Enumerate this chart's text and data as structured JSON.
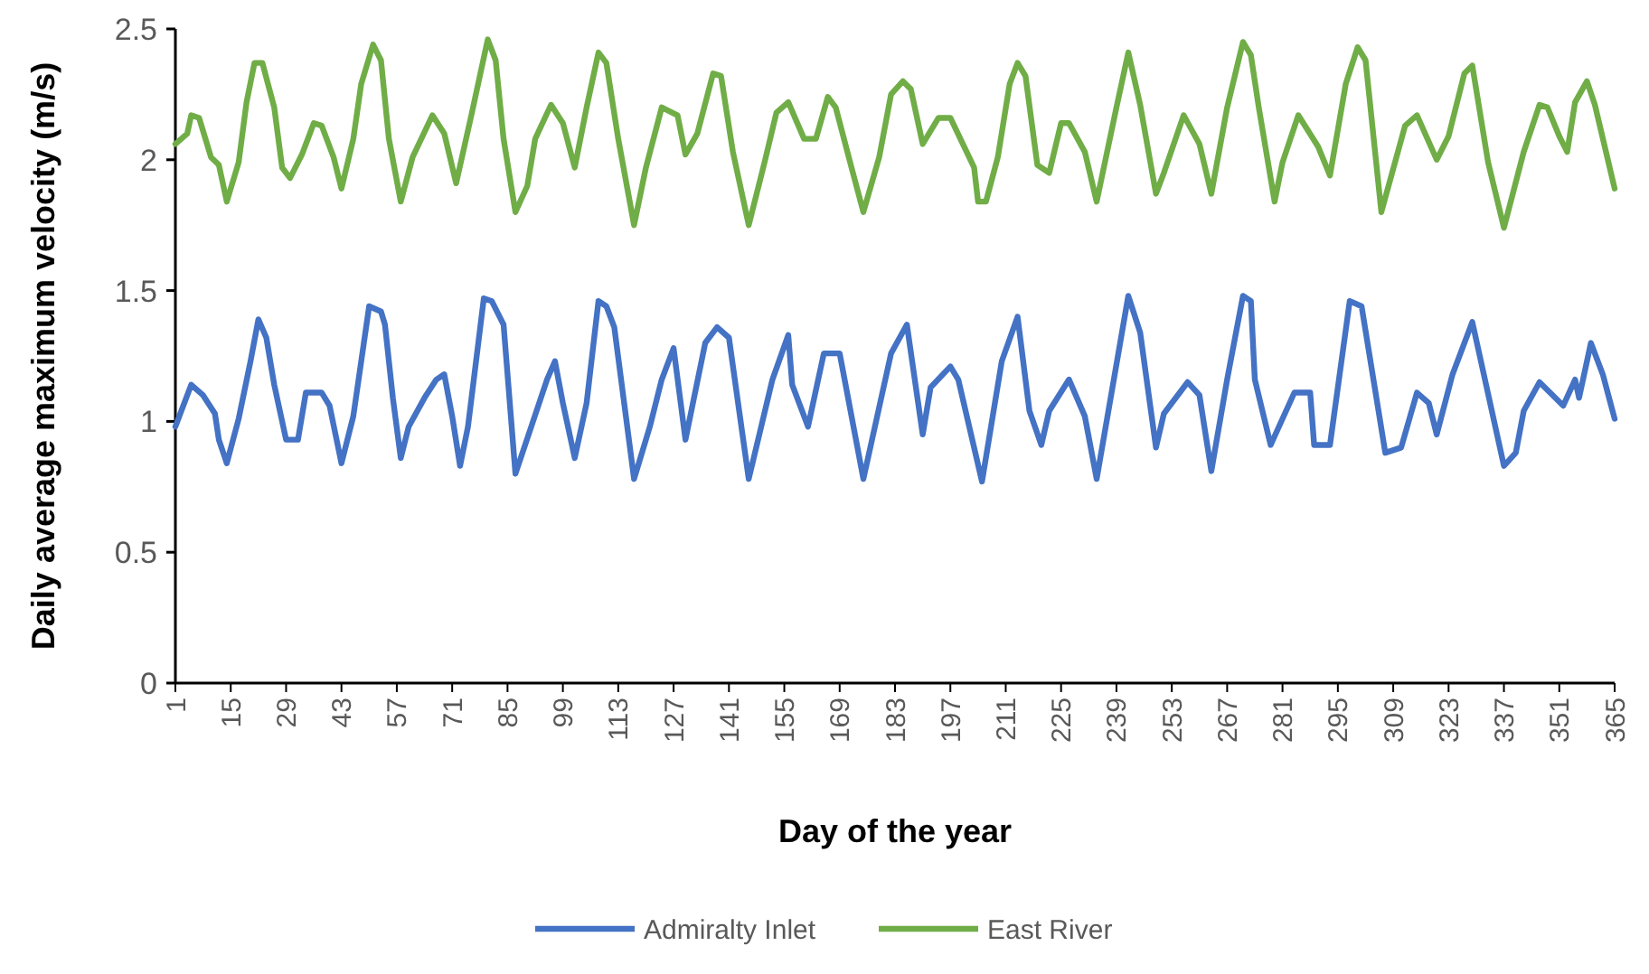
{
  "chart_data": {
    "type": "line",
    "xlabel": "Day of the year",
    "ylabel": "Daily average maximum velocity (m/s)",
    "xlim": [
      1,
      365
    ],
    "xticks": [
      1,
      15,
      29,
      43,
      57,
      71,
      85,
      99,
      113,
      127,
      141,
      155,
      169,
      183,
      197,
      211,
      225,
      239,
      253,
      267,
      281,
      295,
      309,
      323,
      337,
      351,
      365
    ],
    "ylim": [
      0,
      2.5
    ],
    "yticks": [
      0,
      0.5,
      1,
      1.5,
      2,
      2.5
    ],
    "grid": false,
    "legend": "bottom",
    "marker": "none",
    "line_style": "solid",
    "series": [
      {
        "name": "Admiralty Inlet",
        "color": "#4472c4",
        "x": [
          1,
          5,
          8,
          11,
          12,
          14,
          17,
          20,
          22,
          24,
          26,
          29,
          32,
          34,
          38,
          40,
          43,
          46,
          50,
          53,
          54,
          56,
          58,
          60,
          64,
          67,
          69,
          71,
          73,
          75,
          79,
          81,
          84,
          87,
          91,
          95,
          97,
          99,
          102,
          105,
          108,
          110,
          112,
          117,
          121,
          124,
          127,
          130,
          135,
          138,
          141,
          146,
          152,
          156,
          157,
          161,
          165,
          169,
          175,
          182,
          186,
          190,
          192,
          197,
          199,
          205,
          210,
          214,
          217,
          220,
          222,
          227,
          231,
          234,
          242,
          245,
          249,
          251,
          257,
          260,
          263,
          267,
          271,
          273,
          274,
          278,
          284,
          288,
          289,
          293,
          298,
          301,
          307,
          311,
          315,
          318,
          320,
          324,
          329,
          337,
          340,
          342,
          346,
          352,
          355,
          356,
          359,
          362,
          365
        ],
        "values": [
          0.98,
          1.14,
          1.1,
          1.03,
          0.93,
          0.84,
          1.01,
          1.23,
          1.39,
          1.32,
          1.14,
          0.93,
          0.93,
          1.11,
          1.11,
          1.06,
          0.84,
          1.02,
          1.44,
          1.42,
          1.37,
          1.09,
          0.86,
          0.98,
          1.09,
          1.16,
          1.18,
          1.02,
          0.83,
          0.98,
          1.47,
          1.46,
          1.37,
          0.8,
          0.98,
          1.16,
          1.23,
          1.07,
          0.86,
          1.07,
          1.46,
          1.44,
          1.36,
          0.78,
          0.98,
          1.16,
          1.28,
          0.93,
          1.3,
          1.36,
          1.32,
          0.78,
          1.16,
          1.33,
          1.14,
          0.98,
          1.26,
          1.26,
          0.78,
          1.26,
          1.37,
          0.95,
          1.13,
          1.21,
          1.16,
          0.77,
          1.23,
          1.4,
          1.04,
          0.91,
          1.04,
          1.16,
          1.02,
          0.78,
          1.48,
          1.34,
          0.9,
          1.03,
          1.15,
          1.1,
          0.81,
          1.16,
          1.48,
          1.46,
          1.16,
          0.91,
          1.11,
          1.11,
          0.91,
          0.91,
          1.46,
          1.44,
          0.88,
          0.9,
          1.11,
          1.07,
          0.95,
          1.18,
          1.38,
          0.83,
          0.88,
          1.04,
          1.15,
          1.06,
          1.16,
          1.09,
          1.3,
          1.18,
          1.01
        ]
      },
      {
        "name": "East River",
        "color": "#70ad47",
        "x": [
          1,
          4,
          5,
          7,
          10,
          12,
          14,
          17,
          19,
          21,
          23,
          26,
          28,
          30,
          33,
          36,
          38,
          41,
          43,
          46,
          48,
          51,
          53,
          55,
          58,
          61,
          66,
          69,
          72,
          76,
          80,
          82,
          84,
          87,
          90,
          92,
          96,
          99,
          102,
          105,
          108,
          110,
          113,
          117,
          120,
          124,
          128,
          130,
          133,
          137,
          139,
          142,
          146,
          150,
          153,
          156,
          160,
          163,
          166,
          168,
          172,
          175,
          179,
          182,
          185,
          187,
          190,
          194,
          197,
          203,
          204,
          206,
          209,
          212,
          214,
          216,
          219,
          222,
          225,
          227,
          231,
          234,
          239,
          242,
          245,
          249,
          251,
          256,
          260,
          263,
          267,
          271,
          273,
          275,
          279,
          281,
          285,
          290,
          293,
          297,
          300,
          302,
          306,
          312,
          315,
          320,
          323,
          327,
          329,
          333,
          337,
          342,
          346,
          348,
          351,
          353,
          355,
          358,
          360,
          365
        ],
        "values": [
          2.06,
          2.1,
          2.17,
          2.16,
          2.01,
          1.98,
          1.84,
          1.99,
          2.22,
          2.37,
          2.37,
          2.2,
          1.97,
          1.93,
          2.02,
          2.14,
          2.13,
          2.01,
          1.89,
          2.08,
          2.29,
          2.44,
          2.38,
          2.08,
          1.84,
          2.01,
          2.17,
          2.1,
          1.91,
          2.18,
          2.46,
          2.38,
          2.08,
          1.8,
          1.9,
          2.08,
          2.21,
          2.14,
          1.97,
          2.2,
          2.41,
          2.37,
          2.08,
          1.75,
          1.97,
          2.2,
          2.17,
          2.02,
          2.1,
          2.33,
          2.32,
          2.03,
          1.75,
          1.99,
          2.18,
          2.22,
          2.08,
          2.08,
          2.24,
          2.2,
          1.97,
          1.8,
          2.01,
          2.25,
          2.3,
          2.27,
          2.06,
          2.16,
          2.16,
          1.97,
          1.84,
          1.84,
          2.01,
          2.29,
          2.37,
          2.32,
          1.98,
          1.95,
          2.14,
          2.14,
          2.03,
          1.84,
          2.2,
          2.41,
          2.21,
          1.87,
          1.95,
          2.17,
          2.06,
          1.87,
          2.2,
          2.45,
          2.4,
          2.2,
          1.84,
          1.99,
          2.17,
          2.05,
          1.94,
          2.29,
          2.43,
          2.38,
          1.8,
          2.13,
          2.17,
          2,
          2.09,
          2.33,
          2.36,
          1.99,
          1.74,
          2.03,
          2.21,
          2.2,
          2.09,
          2.03,
          2.22,
          2.3,
          2.21,
          1.89
        ]
      }
    ]
  }
}
